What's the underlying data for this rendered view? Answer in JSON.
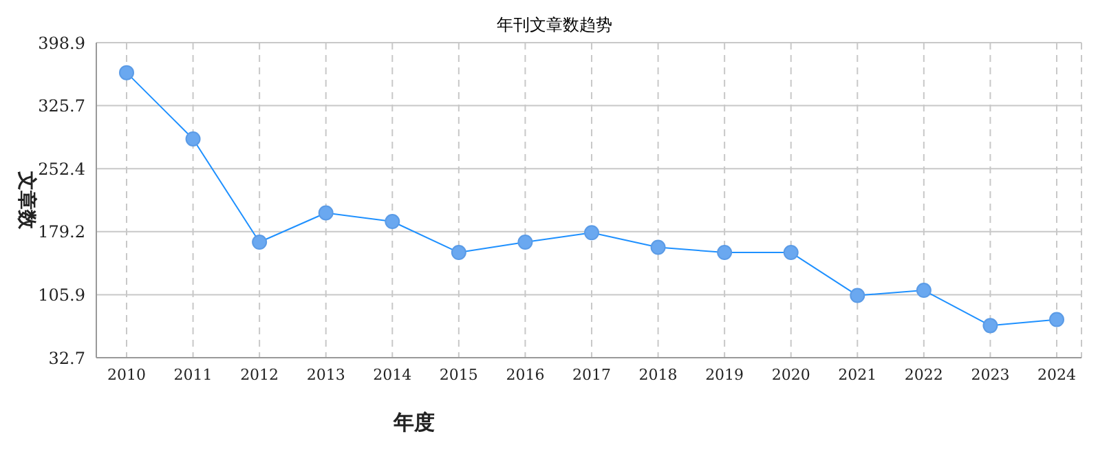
{
  "chart_data": {
    "type": "line",
    "title": "年刊文章数趋势",
    "xlabel": "年度",
    "ylabel": "文章数",
    "categories": [
      "2010",
      "2011",
      "2012",
      "2013",
      "2014",
      "2015",
      "2016",
      "2017",
      "2018",
      "2019",
      "2020",
      "2021",
      "2022",
      "2023",
      "2024"
    ],
    "series": [
      {
        "color": "#1e90ff",
        "values": [
          364,
          287,
          167,
          201,
          191,
          155,
          167,
          178,
          161,
          155,
          155,
          105,
          111,
          70,
          77
        ]
      }
    ],
    "ylim": [
      32.7,
      398.9
    ],
    "yticks": [
      32.7,
      105.9,
      179.2,
      252.4,
      325.7,
      398.9
    ],
    "grid": true,
    "marker": "circle"
  }
}
